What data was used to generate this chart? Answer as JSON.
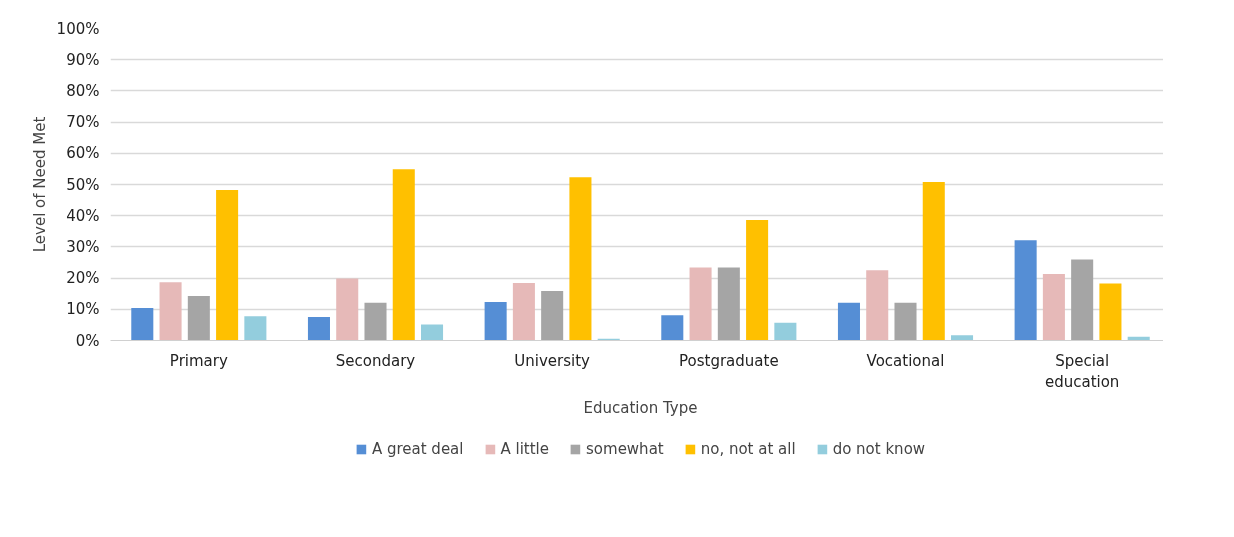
{
  "chart_data": {
    "type": "bar",
    "xlabel": "Education Type",
    "ylabel": "Level of Need Met",
    "categories": [
      "Primary",
      "Secondary",
      "University",
      "Postgraduate",
      "Vocational",
      "Special education"
    ],
    "series": [
      {
        "name": "A great deal",
        "color": "#558ed5",
        "values": [
          10.4,
          7.5,
          12.3,
          8.1,
          12.1,
          32.1
        ]
      },
      {
        "name": "A little",
        "color": "#e6b9b8",
        "values": [
          18.7,
          19.9,
          18.4,
          23.4,
          22.5,
          21.3
        ]
      },
      {
        "name": "somewhat",
        "color": "#a5a5a5",
        "values": [
          14.3,
          12.1,
          15.9,
          23.4,
          12.1,
          26.0
        ]
      },
      {
        "name": "no, not at all",
        "color": "#ffc000",
        "values": [
          48.2,
          54.9,
          52.3,
          38.6,
          50.8,
          18.3
        ]
      },
      {
        "name": "do not know",
        "color": "#93cddd",
        "values": [
          7.8,
          5.1,
          0.6,
          5.7,
          1.7,
          1.2
        ]
      }
    ],
    "ylim": [
      0,
      100
    ],
    "yticks": [
      {
        "value": 0,
        "label": "0%"
      },
      {
        "value": 10,
        "label": "10%"
      },
      {
        "value": 20,
        "label": "20%"
      },
      {
        "value": 30,
        "label": "30%"
      },
      {
        "value": 40,
        "label": "40%"
      },
      {
        "value": 50,
        "label": "50%"
      },
      {
        "value": 60,
        "label": "60%"
      },
      {
        "value": 70,
        "label": "70%"
      },
      {
        "value": 80,
        "label": "80%"
      },
      {
        "value": 90,
        "label": "90%"
      },
      {
        "value": 100,
        "label": "100%"
      }
    ],
    "grid": "y",
    "legend": "bottom"
  }
}
